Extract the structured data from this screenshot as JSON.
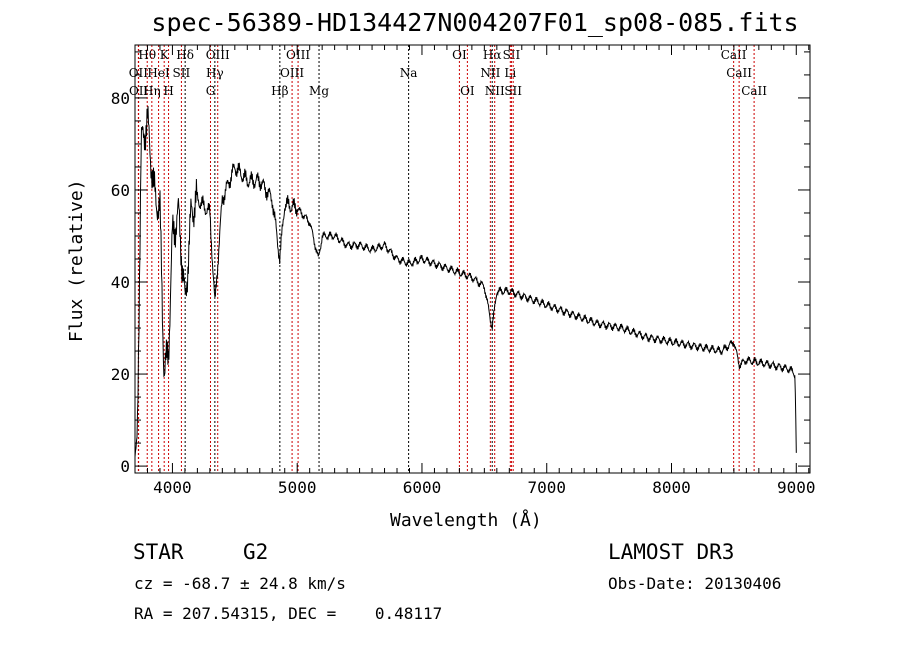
{
  "chart_data": {
    "type": "line",
    "title": "spec-56389-HD134427N004207F01_sp08-085.fits",
    "xlabel": "Wavelength (Å)",
    "ylabel": "Flux (relative)",
    "xlim": [
      3700,
      9110
    ],
    "ylim": [
      -1.5,
      91.5
    ],
    "xticks": [
      4000,
      5000,
      6000,
      7000,
      8000,
      9000
    ],
    "yticks": [
      0,
      20,
      40,
      60,
      80
    ],
    "grid": false,
    "series": [
      {
        "name": "spectrum",
        "x": [
          3700,
          3712,
          3720,
          3750,
          3800,
          3850,
          3900,
          3934,
          3969,
          4000,
          4050,
          4102,
          4150,
          4200,
          4300,
          4340,
          4400,
          4500,
          4600,
          4700,
          4800,
          4861,
          4900,
          5000,
          5100,
          5170,
          5200,
          5300,
          5400,
          5500,
          5600,
          5700,
          5800,
          5900,
          6000,
          6100,
          6200,
          6300,
          6400,
          6500,
          6563,
          6600,
          6700,
          6800,
          7000,
          7200,
          7400,
          7600,
          7800,
          8000,
          8200,
          8400,
          8500,
          8542,
          8600,
          8800,
          8950,
          8990,
          9000
        ],
        "y": [
          0,
          2,
          10,
          70,
          75,
          60,
          55,
          20,
          25,
          50,
          55,
          35,
          55,
          58,
          55,
          35,
          58,
          65,
          62,
          62,
          58,
          45,
          57,
          56,
          53,
          45,
          50,
          50,
          48,
          48,
          47,
          48,
          45,
          44,
          45,
          44,
          43,
          42,
          41,
          39,
          30,
          38,
          38,
          37,
          35,
          33,
          31,
          30,
          28,
          27,
          26,
          25,
          27,
          22,
          23,
          22,
          21,
          20,
          3
        ]
      }
    ],
    "lines": [
      {
        "label": "Hθ",
        "wave": 3798,
        "row": 0,
        "color": "red"
      },
      {
        "label": "K",
        "wave": 3934,
        "row": 0,
        "color": "red"
      },
      {
        "label": "Hδ",
        "wave": 4102,
        "row": 0,
        "color": "black"
      },
      {
        "label": "OIII",
        "wave": 4363,
        "row": 0,
        "color": "red"
      },
      {
        "label": "OIII",
        "wave": 5007,
        "row": 0,
        "color": "red"
      },
      {
        "label": "OI",
        "wave": 6300,
        "row": 0,
        "color": "red"
      },
      {
        "label": "Hα",
        "wave": 6563,
        "row": 0,
        "color": "black"
      },
      {
        "label": "SII",
        "wave": 6717,
        "row": 0,
        "color": "red"
      },
      {
        "label": "CaII",
        "wave": 8498,
        "row": 0,
        "color": "red"
      },
      {
        "label": "OII",
        "wave": 3727,
        "row": 1,
        "color": "red"
      },
      {
        "label": "HeI",
        "wave": 3889,
        "row": 1,
        "color": "red"
      },
      {
        "label": "SII",
        "wave": 4072,
        "row": 1,
        "color": "red"
      },
      {
        "label": "Hγ",
        "wave": 4340,
        "row": 1,
        "color": "black"
      },
      {
        "label": "OIII",
        "wave": 4959,
        "row": 1,
        "color": "red"
      },
      {
        "label": "Na",
        "wave": 5893,
        "row": 1,
        "color": "black"
      },
      {
        "label": "NII",
        "wave": 6548,
        "row": 1,
        "color": "red"
      },
      {
        "label": "Li",
        "wave": 6708,
        "row": 1,
        "color": "red"
      },
      {
        "label": "CaII",
        "wave": 8542,
        "row": 1,
        "color": "red"
      },
      {
        "label": "OII",
        "wave": 3729,
        "row": 2,
        "color": "red"
      },
      {
        "label": "Hη",
        "wave": 3835,
        "row": 2,
        "color": "red"
      },
      {
        "label": "H",
        "wave": 3969,
        "row": 2,
        "color": "red"
      },
      {
        "label": "G",
        "wave": 4305,
        "row": 2,
        "color": "red"
      },
      {
        "label": "Hβ",
        "wave": 4861,
        "row": 2,
        "color": "black"
      },
      {
        "label": "Mg",
        "wave": 5175,
        "row": 2,
        "color": "black"
      },
      {
        "label": "OI",
        "wave": 6364,
        "row": 2,
        "color": "red"
      },
      {
        "label": "NII",
        "wave": 6583,
        "row": 2,
        "color": "red"
      },
      {
        "label": "SII",
        "wave": 6731,
        "row": 2,
        "color": "red"
      },
      {
        "label": "CaII",
        "wave": 8662,
        "row": 2,
        "color": "red"
      }
    ]
  },
  "info": {
    "class": "STAR",
    "subclass": "G2",
    "cz": "cz = -68.7 ± 24.8 km/s",
    "radec": "RA = 207.54315, DEC =    0.48117",
    "survey": "LAMOST DR3",
    "obsdate": "Obs-Date: 20130406"
  }
}
